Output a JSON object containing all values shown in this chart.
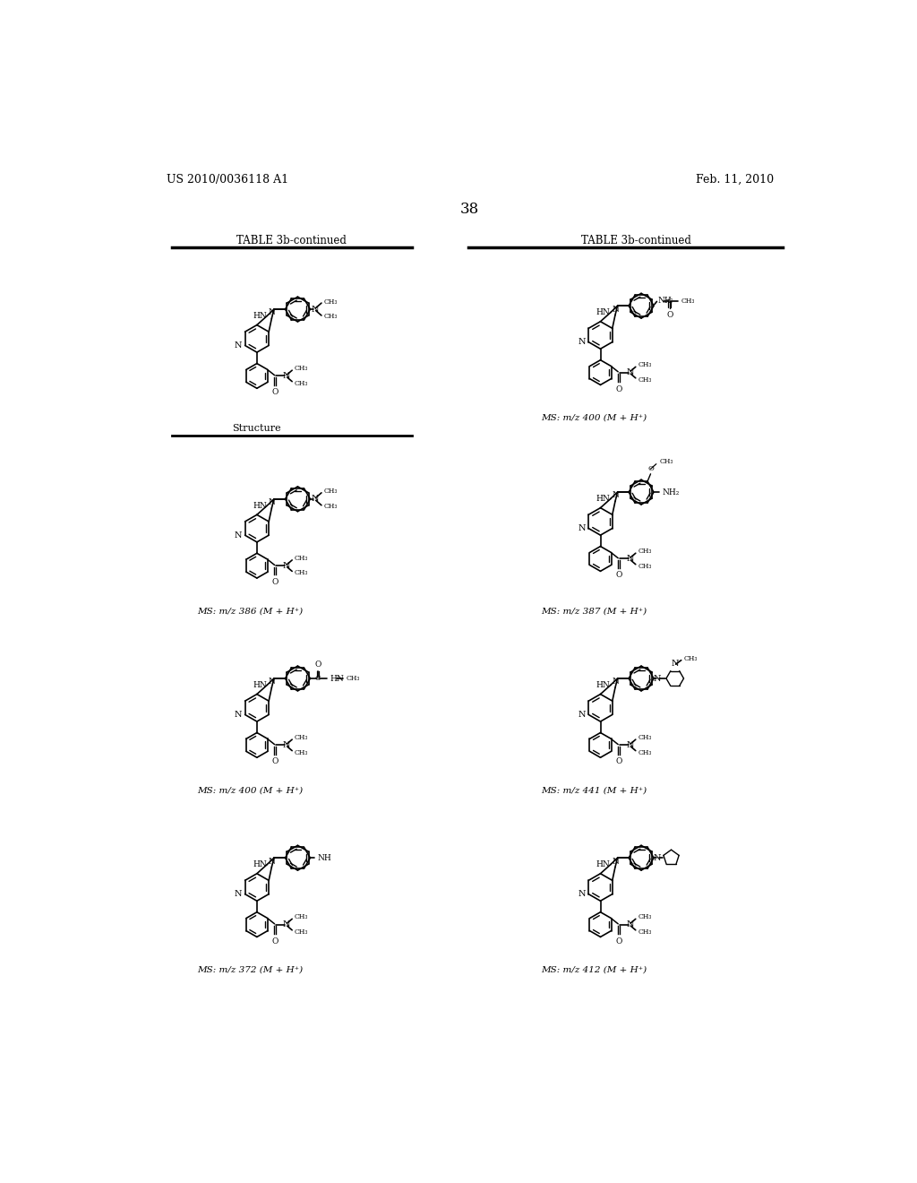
{
  "page_header_left": "US 2010/0036118 A1",
  "page_header_right": "Feb. 11, 2010",
  "page_number": "38",
  "left_table_title": "TABLE 3b-continued",
  "right_table_title": "TABLE 3b-continued",
  "left_col_label": "Structure",
  "ms_labels": {
    "top_right": "MS: m/z 400 (M + H⁺)",
    "r1_left": "MS: m/z 386 (M + H⁺)",
    "r1_right": "MS: m/z 387 (M + H⁺)",
    "r2_left": "MS: m/z 400 (M + H⁺)",
    "r2_right": "MS: m/z 441 (M + H⁺)",
    "r3_left": "MS: m/z 372 (M + H⁺)",
    "r3_right": "MS: m/z 412 (M + H⁺)"
  },
  "background_color": "#ffffff",
  "text_color": "#000000",
  "line_color": "#000000"
}
